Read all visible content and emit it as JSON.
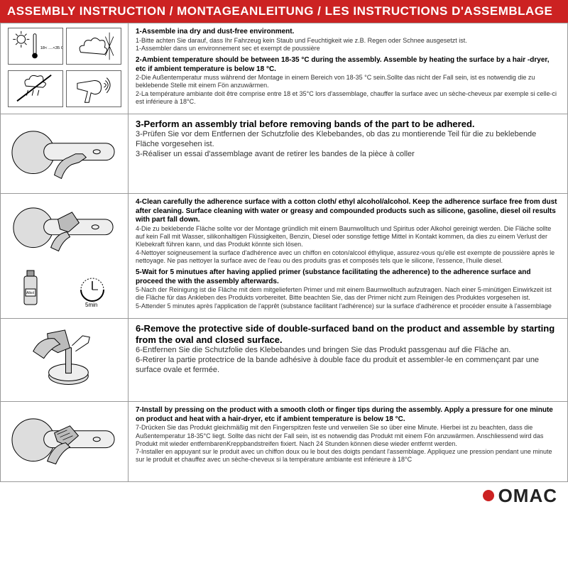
{
  "header": "ASSEMBLY INSTRUCTION / MONTAGEANLEITUNG / LES INSTRUCTIONS D'ASSEMBLAGE",
  "rows": [
    {
      "steps": [
        {
          "bold": "1-Assemble ina dry and dust-free environment.",
          "subs": [
            "1-Bitte achten Sie darauf, dass Ihr Fahrzeug kein Staub und Feuchtigkeit wie z.B. Regen oder Schnee ausgesetzt ist.",
            "1-Assembler dans un environnement sec et exempt de poussière"
          ]
        },
        {
          "bold": "2-Ambient temperature should be between 18-35 °C  during the assembly. Assemble by heating the surface by a hair -dryer, etc if ambient temperature is below 18 °C.",
          "subs": [
            "2-Die Außentemperatur muss während der Montage in einem Bereich von 18-35 °C  sein.Sollte das nicht der Fall sein, ist es notwendig die zu beklebende Stelle mit einem Fön anzuwärmen.",
            "2-La température ambiante doit être comprise entre 18 et 35°C lors d'assemblage, chauffer la surface avec un sèche-cheveux par exemple si celle-ci est inférieure à 18°C."
          ]
        }
      ]
    },
    {
      "big": true,
      "steps": [
        {
          "bold": "3-Perform an assembly trial before removing bands of the part to be adhered.",
          "subs": [
            "3-Prüfen Sie vor dem Entfernen der Schutzfolie des Klebebandes, ob das zu montierende Teil für die zu beklebende Fläche vorgesehen ist.",
            "3-Réaliser un essai d'assemblage avant de retirer les bandes de la pièce à coller"
          ]
        }
      ]
    },
    {
      "steps": [
        {
          "bold": "4-Clean carefully the adherence surface with a cotton cloth/ ethyl alcohol/alcohol. Keep the adherence surface free from dust after cleaning. Surface cleaning with water or greasy and compounded products such as silicone, gasoline, diesel oil results with part fall down.",
          "subs": [
            "4-Die zu beklebende Fläche sollte vor der Montage gründlich mit einem Baumwolltuch und Spiritus oder Alkohol gereinigt werden. Die Fläche sollte auf kein Fall mit Wasser, silikonhaltigen Flüssigkeiten, Benzin, Diesel oder sonstige fettige Mittel in Kontakt kommen, da dies zu einem Verlust der Klebekraft führen kann, und das Produkt könnte sich lösen.",
            "4-Nettoyer soigneusement la surface d'adhérence avec un chiffon en coton/alcool éthylique, assurez-vous qu'elle est exempte de poussière après le nettoyage. Ne pas nettoyer la surface avec de l'eau ou des produits gras et composés tels que le silicone, l'essence, l'huile diesel."
          ]
        },
        {
          "bold": "5-Wait for 5 minutues after having applied primer (substance facilitating the adherence) to the adherence surface and proceed the with the assembly afterwards.",
          "subs": [
            "5-Nach der Reinigung ist die Fläche mit dem mitgelieferten Primer und mit einem Baumwolltuch aufzutragen. Nach einer 5-minütigen Einwirkzeit ist die Fläche für das Ankleben des Produkts vorbereitet. Bitte beachten Sie, das der Primer nicht zum Reinigen des Produktes vorgesehen ist.",
            "5-Attender 5 minutes après l'application de l'apprêt (substance facilitant l'adhérence) sur la surface d'adhérence et procéder ensuite à l'assemblage"
          ]
        }
      ]
    },
    {
      "big": true,
      "steps": [
        {
          "bold": "6-Remove the protective side of double-surfaced band on the product and assemble by starting from the oval and closed surface.",
          "subs": [
            "6-Entfernen Sie die Schutzfolie des Klebebandes und bringen Sie das Produkt passgenau auf die Fläche an.",
            "6-Retirer la partie protectrice de la bande adhésive à double face du produit et assembler-le en commençant par une surface ovale et fermée."
          ]
        }
      ]
    },
    {
      "steps": [
        {
          "bold": "7-Install by pressing on the product with a smooth cloth or finger tips during the assembly. Apply a pressure for one minute on product and heat with a hair-dryer, etc if ambient temperature is below 18 °C.",
          "subs": [
            "7-Drücken Sie das Produkt gleichmäßig mit den Fingerspitzen feste und verweilen Sie so über eine Minute. Hierbei ist zu beachten, dass die Außentemperatur 18-35°C liegt. Sollte das nicht der Fall sein, ist es notwendig das Produkt mit einem Fön anzuwärmen. Anschliessend wird das Produkt mit wieder entfernbarenKreppbandstreifen fixiert. Nach 24 Stunden können diese wieder entfernt werden.",
            "7-Installer en appuyant sur le produit avec un chiffon doux ou le bout des doigts pendant l'assemblage. Appliquez une pression pendant une minute sur le produit et chauffez avec un sèche-cheveux si la température ambiante est inférieure à 18°C"
          ]
        }
      ]
    }
  ],
  "temp_label": "18< ....<35 C",
  "timer_label": "5min",
  "bottle_label": "Alkol",
  "footer_brand": "OMAC",
  "colors": {
    "header_bg": "#cc2222",
    "header_text": "#ffffff",
    "border": "#999999",
    "text": "#222222",
    "accent": "#cc2222"
  }
}
